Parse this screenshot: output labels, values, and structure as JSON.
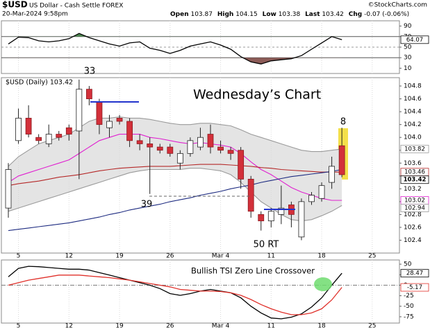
{
  "header": {
    "symbol": "$USD",
    "name": "US Dollar - Cash Settle FOREX",
    "date": "20-Mar-2024 9:58pm",
    "source": "©StockCharts.com",
    "quote": [
      {
        "label": "Open",
        "value": 103.87
      },
      {
        "label": "High",
        "value": 104.15
      },
      {
        "label": "Low",
        "value": 103.38
      },
      {
        "label": "Last",
        "value": 103.42
      },
      {
        "label": "Chg",
        "value": "-0.07 (-0.06%)"
      }
    ]
  },
  "chart_data": [
    {
      "type": "line",
      "ylim": [
        0,
        100
      ],
      "yticks": [
        90,
        70,
        50,
        30,
        10
      ],
      "overbought_color": "#4f8a52",
      "oversold_color": "#8c5b57",
      "series": [
        {
          "color": "#000000",
          "value_tag": true,
          "values": [
            56,
            69,
            68,
            62,
            60,
            62,
            66,
            76,
            68,
            62,
            56,
            52,
            58,
            60,
            48,
            44,
            38,
            44,
            52,
            56,
            60,
            54,
            46,
            32,
            22,
            18,
            24,
            26,
            28,
            34,
            46,
            58,
            70,
            64.07,
            null,
            null,
            null
          ]
        }
      ]
    },
    {
      "type": "candlestick",
      "title": "$USD (Daily) 103.42",
      "annotations": [
        "33",
        "Wednesday’s Chart",
        "8",
        "39",
        "50 RT"
      ],
      "categories": [
        null,
        "5",
        null,
        null,
        null,
        null,
        "12",
        null,
        null,
        null,
        null,
        "19",
        null,
        null,
        null,
        null,
        "26",
        null,
        null,
        null,
        null,
        "Mar 4",
        null,
        null,
        null,
        null,
        "11",
        null,
        null,
        null,
        null,
        "18",
        null,
        null,
        null,
        null,
        "25"
      ],
      "open": [
        102.9,
        103.95,
        104.3,
        104.0,
        103.9,
        104.05,
        104.15,
        104.1,
        104.75,
        104.55,
        104.15,
        104.3,
        104.25,
        103.95,
        103.9,
        103.85,
        103.85,
        103.6,
        103.75,
        103.85,
        104.05,
        103.85,
        103.8,
        103.8,
        103.35,
        102.8,
        102.7,
        102.8,
        102.95,
        102.45,
        103.0,
        103.05,
        103.3,
        103.87,
        null,
        null,
        null
      ],
      "high": [
        103.6,
        104.45,
        104.5,
        104.05,
        104.2,
        104.1,
        104.2,
        104.9,
        104.8,
        104.6,
        104.35,
        104.35,
        104.3,
        104.05,
        104.0,
        103.9,
        103.9,
        103.8,
        104.0,
        104.15,
        104.2,
        103.95,
        103.85,
        103.85,
        103.4,
        102.85,
        102.9,
        103.25,
        103.0,
        103.05,
        103.15,
        103.3,
        103.7,
        104.15,
        null,
        null,
        null
      ],
      "low": [
        102.75,
        103.9,
        104.0,
        103.9,
        103.85,
        103.95,
        103.95,
        103.35,
        104.5,
        104.05,
        104.0,
        104.2,
        103.85,
        103.8,
        103.12,
        103.75,
        103.7,
        103.5,
        103.7,
        103.8,
        103.75,
        103.75,
        103.65,
        103.2,
        102.75,
        102.55,
        102.6,
        102.65,
        102.6,
        102.4,
        102.95,
        103.0,
        103.2,
        103.38,
        null,
        null,
        null
      ],
      "close": [
        103.5,
        104.3,
        104.05,
        103.95,
        104.05,
        104.0,
        104.05,
        104.75,
        104.6,
        104.2,
        104.25,
        104.25,
        103.95,
        103.9,
        103.85,
        103.8,
        103.75,
        103.75,
        103.95,
        104.0,
        103.85,
        103.8,
        103.75,
        103.35,
        102.85,
        102.7,
        102.85,
        102.9,
        102.8,
        103.0,
        103.1,
        103.25,
        103.55,
        103.42,
        null,
        null,
        null
      ],
      "up_color": "#ffffff",
      "down_color": "#d3303a",
      "band_fill": "#e4e4e4",
      "ylim": [
        102.2,
        104.93
      ],
      "yticks": [
        104.8,
        104.6,
        104.4,
        104.2,
        {
          "value": 104,
          "label": "104.0"
        },
        103.8,
        103.6,
        103.4,
        103.2,
        {
          "value": 103,
          "label": "103.0"
        },
        102.8,
        102.6,
        102.4
      ],
      "overlays": [
        {
          "color": "#9a9a9a",
          "value_tag": true,
          "values": [
            103.55,
            103.7,
            103.8,
            103.9,
            103.95,
            104.0,
            104.05,
            104.15,
            104.25,
            104.3,
            104.3,
            104.32,
            104.3,
            104.3,
            104.28,
            104.25,
            104.22,
            104.2,
            104.2,
            104.22,
            104.22,
            104.2,
            104.18,
            104.12,
            104.05,
            104.0,
            103.95,
            103.9,
            103.85,
            103.8,
            103.78,
            103.78,
            103.8,
            103.82,
            null,
            null,
            null
          ]
        },
        {
          "color": "#9a9a9a",
          "value_tag": true,
          "values": [
            102.85,
            102.9,
            102.95,
            103.0,
            103.05,
            103.1,
            103.15,
            103.2,
            103.25,
            103.3,
            103.35,
            103.4,
            103.45,
            103.48,
            103.5,
            103.5,
            103.5,
            103.5,
            103.52,
            103.52,
            103.5,
            103.48,
            103.42,
            103.3,
            103.15,
            103.0,
            102.9,
            102.8,
            102.72,
            102.7,
            102.72,
            102.78,
            102.85,
            102.94,
            null,
            null,
            null
          ]
        },
        {
          "color": "#e020d0",
          "value_tag": true,
          "values": [
            103.3,
            103.4,
            103.45,
            103.5,
            103.55,
            103.6,
            103.65,
            103.75,
            103.85,
            103.95,
            104.0,
            104.05,
            104.05,
            104.05,
            104.0,
            103.98,
            103.95,
            103.92,
            103.9,
            103.92,
            103.9,
            103.88,
            103.85,
            103.75,
            103.62,
            103.5,
            103.42,
            103.32,
            103.22,
            103.15,
            103.1,
            103.05,
            103.02,
            103.02,
            null,
            null,
            null
          ]
        },
        {
          "color": "#b52828",
          "value_tag": true,
          "values": [
            103.25,
            103.28,
            103.3,
            103.32,
            103.35,
            103.38,
            103.4,
            103.42,
            103.45,
            103.48,
            103.5,
            103.52,
            103.53,
            103.54,
            103.55,
            103.55,
            103.55,
            103.56,
            103.57,
            103.58,
            103.58,
            103.58,
            103.57,
            103.56,
            103.55,
            103.53,
            103.52,
            103.5,
            103.49,
            103.48,
            103.47,
            103.46,
            103.46,
            103.46,
            null,
            null,
            null
          ]
        },
        {
          "color": "#1c2a80",
          "value_tag": false,
          "values": [
            102.55,
            102.57,
            102.59,
            102.61,
            102.63,
            102.65,
            102.67,
            102.7,
            102.73,
            102.76,
            102.8,
            102.83,
            102.87,
            102.9,
            102.93,
            102.96,
            103.0,
            103.03,
            103.06,
            103.1,
            103.13,
            103.16,
            103.2,
            103.23,
            103.26,
            103.3,
            103.33,
            103.36,
            103.39,
            103.41,
            103.43,
            103.45,
            103.47,
            103.5,
            null,
            null,
            null
          ]
        }
      ]
    },
    {
      "type": "line",
      "annotations": [
        "Bullish TSI Zero Line Crossover"
      ],
      "ylim": [
        -90,
        60
      ],
      "yticks": [
        50,
        25,
        0,
        -25,
        -50,
        -75
      ],
      "series": [
        {
          "color": "#000000",
          "value_tag": true,
          "values": [
            20,
            40,
            45,
            44,
            42,
            40,
            38,
            38,
            36,
            30,
            24,
            18,
            12,
            6,
            0,
            -8,
            -20,
            -24,
            -20,
            -14,
            -10,
            -14,
            -18,
            -30,
            -50,
            -66,
            -78,
            -80,
            -76,
            -68,
            -52,
            -30,
            0,
            28.47,
            null,
            null,
            null
          ]
        },
        {
          "color": "#e0302a",
          "value_tag": true,
          "values": [
            0,
            6,
            12,
            16,
            20,
            24,
            24,
            24,
            22,
            20,
            18,
            15,
            12,
            8,
            4,
            0,
            -4,
            -10,
            -12,
            -14,
            -14,
            -15,
            -18,
            -24,
            -34,
            -46,
            -56,
            -64,
            -70,
            -70,
            -66,
            -56,
            -35,
            -5.17,
            null,
            null,
            null
          ]
        }
      ]
    }
  ]
}
